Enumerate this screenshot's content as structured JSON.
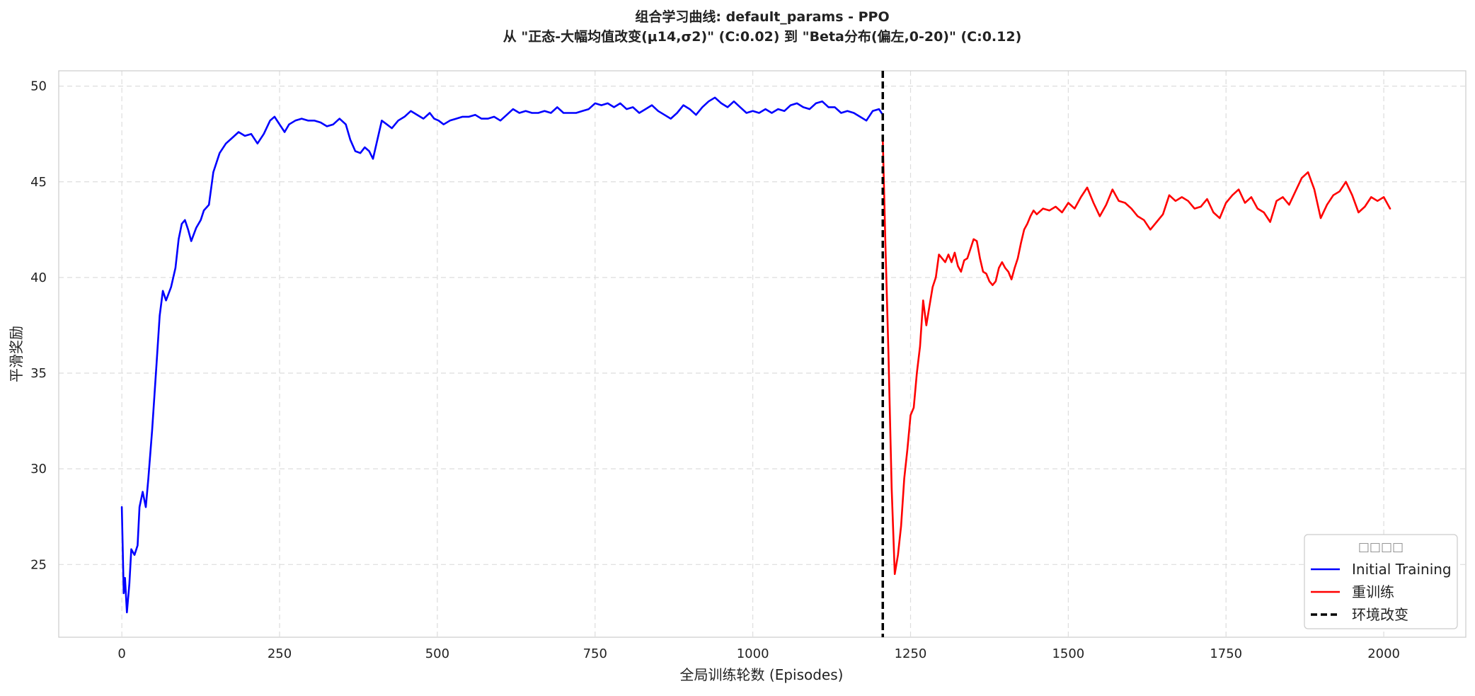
{
  "chart_data": {
    "type": "line",
    "title": "组合学习曲线: default_params - PPO",
    "subtitle": "从 \"正态-大幅均值改变(μ14,σ2)\" (C:0.02) 到 \"Beta分布(偏左,0-20)\" (C:0.12)",
    "xlabel": "全局训练轮数 (Episodes)",
    "ylabel": "平滑奖励",
    "xlim": [
      -100,
      2130
    ],
    "ylim": [
      21.2,
      50.8
    ],
    "xticks": [
      0,
      250,
      500,
      750,
      1000,
      1250,
      1500,
      1750,
      2000
    ],
    "yticks": [
      25,
      30,
      35,
      40,
      45,
      50
    ],
    "grid": true,
    "legend": {
      "title": "□□□□",
      "placement": "bottom-right",
      "entries": [
        {
          "label": "Initial Training",
          "color": "#0000ff",
          "style": "solid"
        },
        {
          "label": "重训练",
          "color": "#ff0000",
          "style": "solid"
        },
        {
          "label": "环境改变",
          "color": "#000000",
          "style": "dashed"
        }
      ]
    },
    "vline": {
      "x": 1206,
      "name": "环境改变",
      "color": "#000000"
    },
    "series": [
      {
        "name": "Initial Training",
        "color": "#0000ff",
        "points": [
          [
            0,
            28.0
          ],
          [
            3,
            23.5
          ],
          [
            5,
            24.3
          ],
          [
            8,
            22.5
          ],
          [
            12,
            24.0
          ],
          [
            15,
            25.8
          ],
          [
            20,
            25.5
          ],
          [
            25,
            26.0
          ],
          [
            28,
            28.0
          ],
          [
            33,
            28.8
          ],
          [
            38,
            28.0
          ],
          [
            42,
            29.5
          ],
          [
            48,
            32.0
          ],
          [
            55,
            35.5
          ],
          [
            60,
            38.0
          ],
          [
            65,
            39.3
          ],
          [
            70,
            38.8
          ],
          [
            78,
            39.5
          ],
          [
            85,
            40.5
          ],
          [
            90,
            42.0
          ],
          [
            95,
            42.8
          ],
          [
            100,
            43.0
          ],
          [
            105,
            42.5
          ],
          [
            110,
            41.9
          ],
          [
            118,
            42.6
          ],
          [
            125,
            43.0
          ],
          [
            130,
            43.5
          ],
          [
            138,
            43.8
          ],
          [
            145,
            45.5
          ],
          [
            155,
            46.5
          ],
          [
            165,
            47.0
          ],
          [
            175,
            47.3
          ],
          [
            185,
            47.6
          ],
          [
            195,
            47.4
          ],
          [
            205,
            47.5
          ],
          [
            215,
            47.0
          ],
          [
            225,
            47.5
          ],
          [
            235,
            48.2
          ],
          [
            242,
            48.4
          ],
          [
            250,
            48.0
          ],
          [
            258,
            47.6
          ],
          [
            265,
            48.0
          ],
          [
            275,
            48.2
          ],
          [
            285,
            48.3
          ],
          [
            295,
            48.2
          ],
          [
            305,
            48.2
          ],
          [
            315,
            48.1
          ],
          [
            325,
            47.9
          ],
          [
            335,
            48.0
          ],
          [
            345,
            48.3
          ],
          [
            355,
            48.0
          ],
          [
            362,
            47.2
          ],
          [
            370,
            46.6
          ],
          [
            378,
            46.5
          ],
          [
            385,
            46.8
          ],
          [
            392,
            46.6
          ],
          [
            398,
            46.2
          ],
          [
            405,
            47.2
          ],
          [
            412,
            48.2
          ],
          [
            420,
            48.0
          ],
          [
            428,
            47.8
          ],
          [
            438,
            48.2
          ],
          [
            448,
            48.4
          ],
          [
            458,
            48.7
          ],
          [
            468,
            48.5
          ],
          [
            478,
            48.3
          ],
          [
            488,
            48.6
          ],
          [
            495,
            48.3
          ],
          [
            502,
            48.2
          ],
          [
            510,
            48.0
          ],
          [
            520,
            48.2
          ],
          [
            530,
            48.3
          ],
          [
            540,
            48.4
          ],
          [
            550,
            48.4
          ],
          [
            560,
            48.5
          ],
          [
            570,
            48.3
          ],
          [
            580,
            48.3
          ],
          [
            590,
            48.4
          ],
          [
            600,
            48.2
          ],
          [
            610,
            48.5
          ],
          [
            620,
            48.8
          ],
          [
            630,
            48.6
          ],
          [
            640,
            48.7
          ],
          [
            650,
            48.6
          ],
          [
            660,
            48.6
          ],
          [
            670,
            48.7
          ],
          [
            680,
            48.6
          ],
          [
            690,
            48.9
          ],
          [
            700,
            48.6
          ],
          [
            710,
            48.6
          ],
          [
            720,
            48.6
          ],
          [
            730,
            48.7
          ],
          [
            740,
            48.8
          ],
          [
            750,
            49.1
          ],
          [
            760,
            49.0
          ],
          [
            770,
            49.1
          ],
          [
            780,
            48.9
          ],
          [
            790,
            49.1
          ],
          [
            800,
            48.8
          ],
          [
            810,
            48.9
          ],
          [
            820,
            48.6
          ],
          [
            830,
            48.8
          ],
          [
            840,
            49.0
          ],
          [
            850,
            48.7
          ],
          [
            860,
            48.5
          ],
          [
            870,
            48.3
          ],
          [
            880,
            48.6
          ],
          [
            890,
            49.0
          ],
          [
            900,
            48.8
          ],
          [
            910,
            48.5
          ],
          [
            920,
            48.9
          ],
          [
            930,
            49.2
          ],
          [
            940,
            49.4
          ],
          [
            950,
            49.1
          ],
          [
            960,
            48.9
          ],
          [
            970,
            49.2
          ],
          [
            980,
            48.9
          ],
          [
            990,
            48.6
          ],
          [
            1000,
            48.7
          ],
          [
            1010,
            48.6
          ],
          [
            1020,
            48.8
          ],
          [
            1030,
            48.6
          ],
          [
            1040,
            48.8
          ],
          [
            1050,
            48.7
          ],
          [
            1060,
            49.0
          ],
          [
            1070,
            49.1
          ],
          [
            1080,
            48.9
          ],
          [
            1090,
            48.8
          ],
          [
            1100,
            49.1
          ],
          [
            1110,
            49.2
          ],
          [
            1120,
            48.9
          ],
          [
            1130,
            48.9
          ],
          [
            1140,
            48.6
          ],
          [
            1150,
            48.7
          ],
          [
            1160,
            48.6
          ],
          [
            1170,
            48.4
          ],
          [
            1180,
            48.2
          ],
          [
            1190,
            48.7
          ],
          [
            1200,
            48.8
          ],
          [
            1206,
            48.5
          ]
        ]
      },
      {
        "name": "重训练",
        "color": "#ff0000",
        "points": [
          [
            1206,
            47.2
          ],
          [
            1210,
            42.0
          ],
          [
            1215,
            36.0
          ],
          [
            1220,
            29.0
          ],
          [
            1225,
            24.5
          ],
          [
            1230,
            25.5
          ],
          [
            1235,
            27.0
          ],
          [
            1240,
            29.5
          ],
          [
            1245,
            31.0
          ],
          [
            1250,
            32.8
          ],
          [
            1255,
            33.2
          ],
          [
            1260,
            35.0
          ],
          [
            1265,
            36.4
          ],
          [
            1270,
            38.8
          ],
          [
            1275,
            37.5
          ],
          [
            1280,
            38.5
          ],
          [
            1285,
            39.5
          ],
          [
            1290,
            40.0
          ],
          [
            1295,
            41.2
          ],
          [
            1300,
            41.0
          ],
          [
            1305,
            40.8
          ],
          [
            1310,
            41.2
          ],
          [
            1315,
            40.8
          ],
          [
            1320,
            41.3
          ],
          [
            1325,
            40.6
          ],
          [
            1330,
            40.3
          ],
          [
            1335,
            40.9
          ],
          [
            1340,
            41.0
          ],
          [
            1345,
            41.5
          ],
          [
            1350,
            42.0
          ],
          [
            1355,
            41.9
          ],
          [
            1360,
            41.0
          ],
          [
            1365,
            40.3
          ],
          [
            1370,
            40.2
          ],
          [
            1375,
            39.8
          ],
          [
            1380,
            39.6
          ],
          [
            1385,
            39.8
          ],
          [
            1390,
            40.5
          ],
          [
            1395,
            40.8
          ],
          [
            1400,
            40.5
          ],
          [
            1405,
            40.3
          ],
          [
            1410,
            39.9
          ],
          [
            1415,
            40.5
          ],
          [
            1420,
            41.0
          ],
          [
            1425,
            41.8
          ],
          [
            1430,
            42.5
          ],
          [
            1435,
            42.8
          ],
          [
            1440,
            43.2
          ],
          [
            1445,
            43.5
          ],
          [
            1450,
            43.3
          ],
          [
            1460,
            43.6
          ],
          [
            1470,
            43.5
          ],
          [
            1480,
            43.7
          ],
          [
            1490,
            43.4
          ],
          [
            1500,
            43.9
          ],
          [
            1510,
            43.6
          ],
          [
            1520,
            44.2
          ],
          [
            1530,
            44.7
          ],
          [
            1540,
            43.9
          ],
          [
            1550,
            43.2
          ],
          [
            1560,
            43.8
          ],
          [
            1570,
            44.6
          ],
          [
            1580,
            44.0
          ],
          [
            1590,
            43.9
          ],
          [
            1600,
            43.6
          ],
          [
            1610,
            43.2
          ],
          [
            1620,
            43.0
          ],
          [
            1630,
            42.5
          ],
          [
            1640,
            42.9
          ],
          [
            1650,
            43.3
          ],
          [
            1660,
            44.3
          ],
          [
            1670,
            44.0
          ],
          [
            1680,
            44.2
          ],
          [
            1690,
            44.0
          ],
          [
            1700,
            43.6
          ],
          [
            1710,
            43.7
          ],
          [
            1720,
            44.1
          ],
          [
            1730,
            43.4
          ],
          [
            1740,
            43.1
          ],
          [
            1750,
            43.9
          ],
          [
            1760,
            44.3
          ],
          [
            1770,
            44.6
          ],
          [
            1780,
            43.9
          ],
          [
            1790,
            44.2
          ],
          [
            1800,
            43.6
          ],
          [
            1810,
            43.4
          ],
          [
            1820,
            42.9
          ],
          [
            1830,
            44.0
          ],
          [
            1840,
            44.2
          ],
          [
            1850,
            43.8
          ],
          [
            1860,
            44.5
          ],
          [
            1870,
            45.2
          ],
          [
            1880,
            45.5
          ],
          [
            1890,
            44.6
          ],
          [
            1900,
            43.1
          ],
          [
            1910,
            43.8
          ],
          [
            1920,
            44.3
          ],
          [
            1930,
            44.5
          ],
          [
            1940,
            45.0
          ],
          [
            1950,
            44.3
          ],
          [
            1960,
            43.4
          ],
          [
            1970,
            43.7
          ],
          [
            1980,
            44.2
          ],
          [
            1990,
            44.0
          ],
          [
            2000,
            44.2
          ],
          [
            2010,
            43.6
          ]
        ]
      }
    ]
  }
}
